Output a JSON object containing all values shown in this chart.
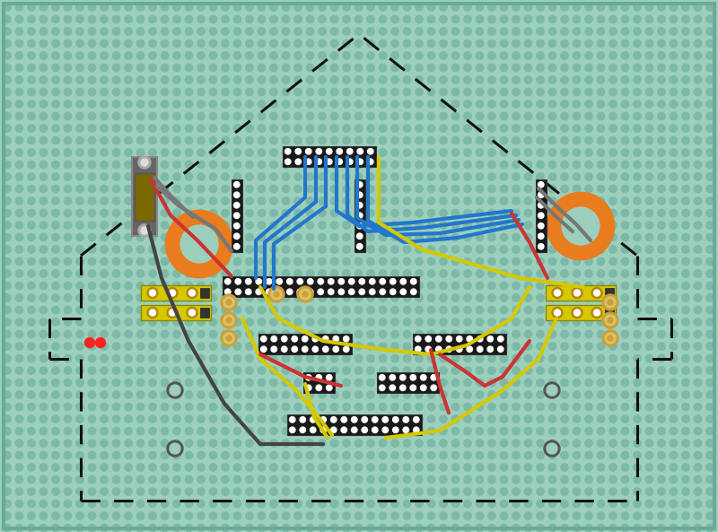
{
  "bg_color": "#9dcfbd",
  "dot_color": "#7db9a8",
  "fig_width": 8.0,
  "fig_height": 5.93,
  "dpi": 100,
  "dashed_line_color": "#111111",
  "orange_ring_color": "#e87c1e",
  "yellow_module_color": "#d4c800",
  "blue_wire_color": "#2277cc",
  "red_wire_color": "#cc3333",
  "yellow_wire_color": "#d4c800",
  "gray_wire_color": "#777777",
  "dark_gray_wire_color": "#444444",
  "header_black_color": "#1a1a1a",
  "header_dot_color": "#ffffff",
  "ic_body_color": "#666666",
  "ic_chip_color": "#7a6800",
  "ic_pin_color": "#aaaaaa",
  "gold_contact_color": "#b8860b",
  "mounting_hole_outer": "#666666",
  "mounting_hole_inner": "#9dcfbd"
}
